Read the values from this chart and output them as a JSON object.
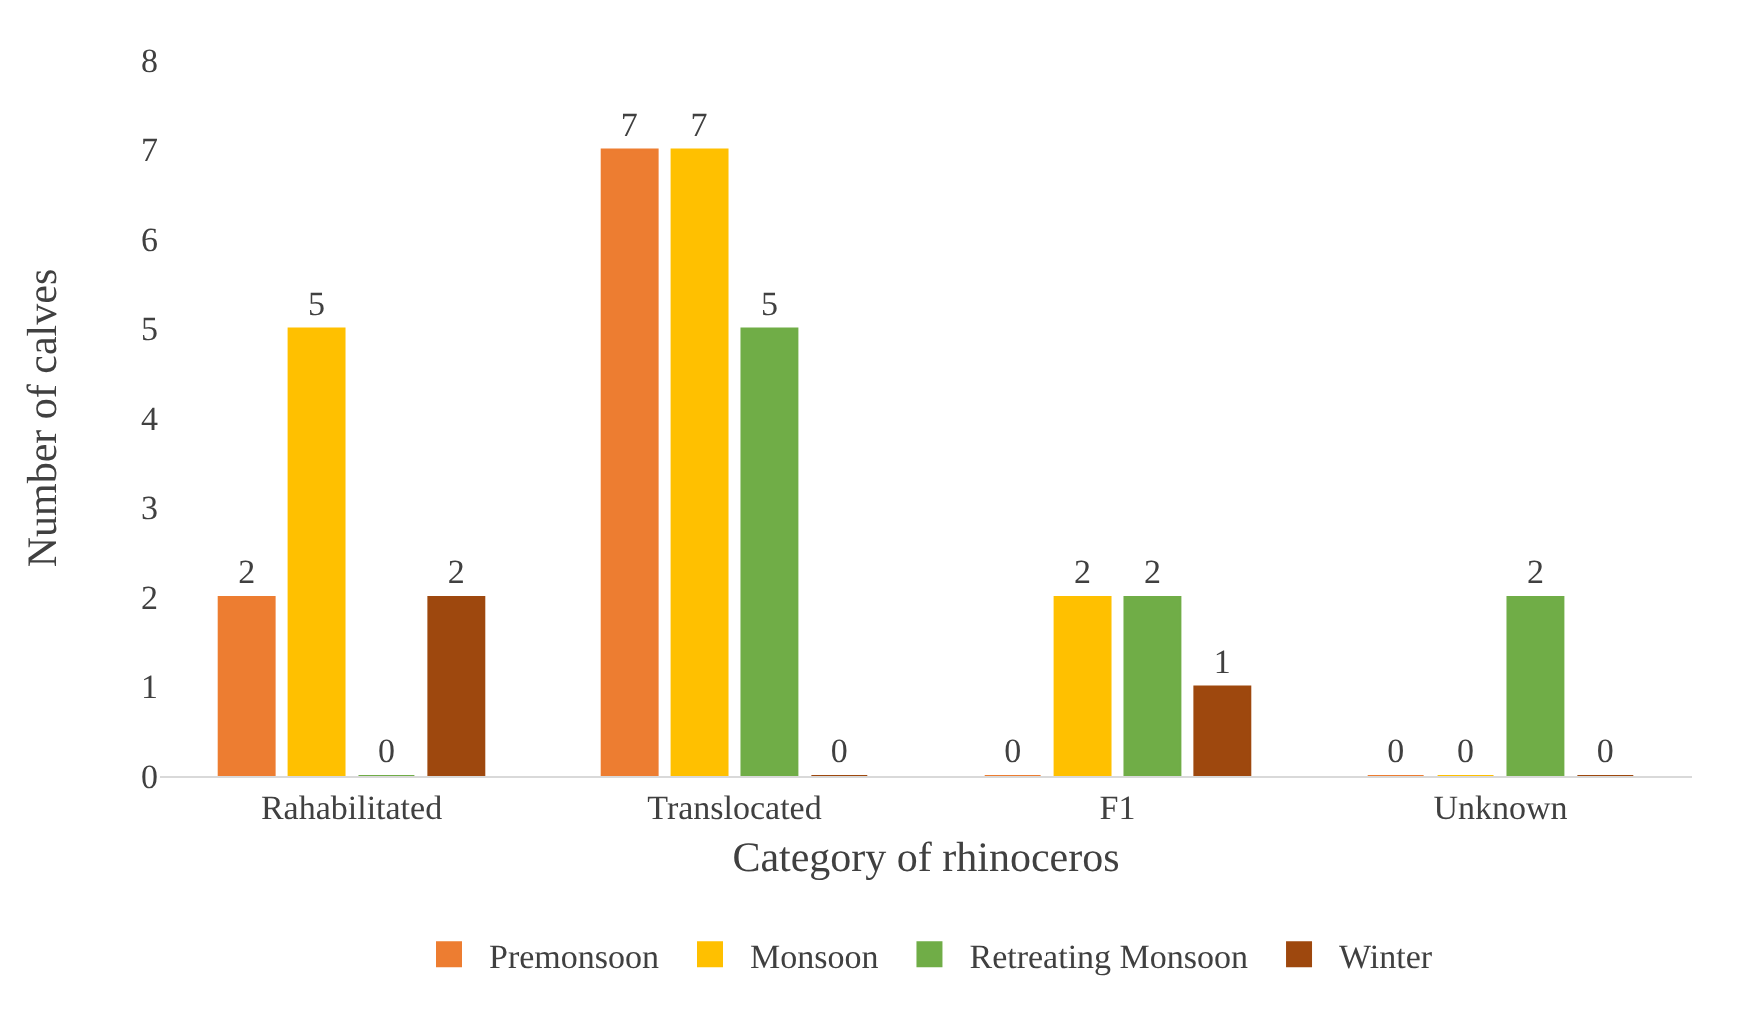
{
  "chart_data": {
    "type": "bar",
    "xlabel": "Category of rhinoceros",
    "ylabel": "Number of calves",
    "categories": [
      "Rahabilitated",
      "Translocated",
      "F1",
      "Unknown"
    ],
    "series": [
      {
        "name": "Premonsoon",
        "color": "#ed7d31",
        "values": [
          2,
          7,
          0,
          0
        ]
      },
      {
        "name": "Monsoon",
        "color": "#ffc000",
        "values": [
          5,
          7,
          2,
          0
        ]
      },
      {
        "name": "Retreating Monsoon",
        "color": "#70ad47",
        "values": [
          0,
          5,
          2,
          2
        ]
      },
      {
        "name": "Winter",
        "color": "#9e480e",
        "values": [
          2,
          0,
          1,
          0
        ]
      }
    ],
    "ylim": [
      0,
      8
    ],
    "yticks": [
      0,
      1,
      2,
      3,
      4,
      5,
      6,
      7,
      8
    ],
    "data_labels": true,
    "legend": "bottom"
  }
}
